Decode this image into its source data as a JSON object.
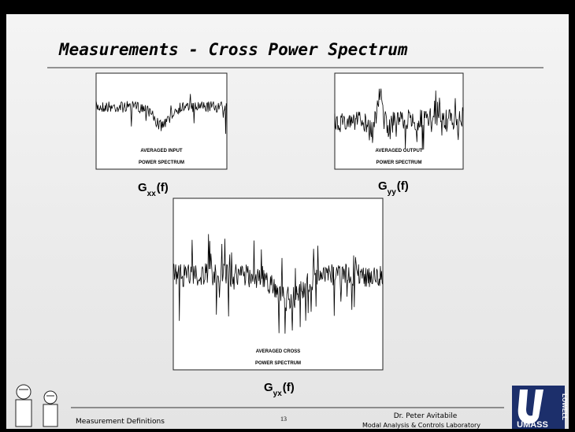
{
  "slide": {
    "title": "Measurements - Cross Power Spectrum",
    "panels": [
      {
        "caption": [
          "AVERAGED INPUT",
          "POWER SPECTRUM"
        ],
        "symbol": "G",
        "subscript": "xx",
        "suffix": "(f)"
      },
      {
        "caption": [
          "AVERAGED OUTPUT",
          "POWER SPECTRUM"
        ],
        "symbol": "G",
        "subscript": "yy",
        "suffix": "(f)"
      },
      {
        "caption": [
          "AVERAGED CROSS",
          "POWER SPECTRUM"
        ],
        "symbol": "G",
        "subscript": "yx",
        "suffix": "(f)"
      }
    ],
    "footer": {
      "left": "Measurement Definitions",
      "page": 13,
      "author": "Dr. Peter Avitabile",
      "lab": "Modal Analysis & Controls Laboratory"
    },
    "logo": {
      "main": "UMASS",
      "side": "LOWELL"
    }
  }
}
